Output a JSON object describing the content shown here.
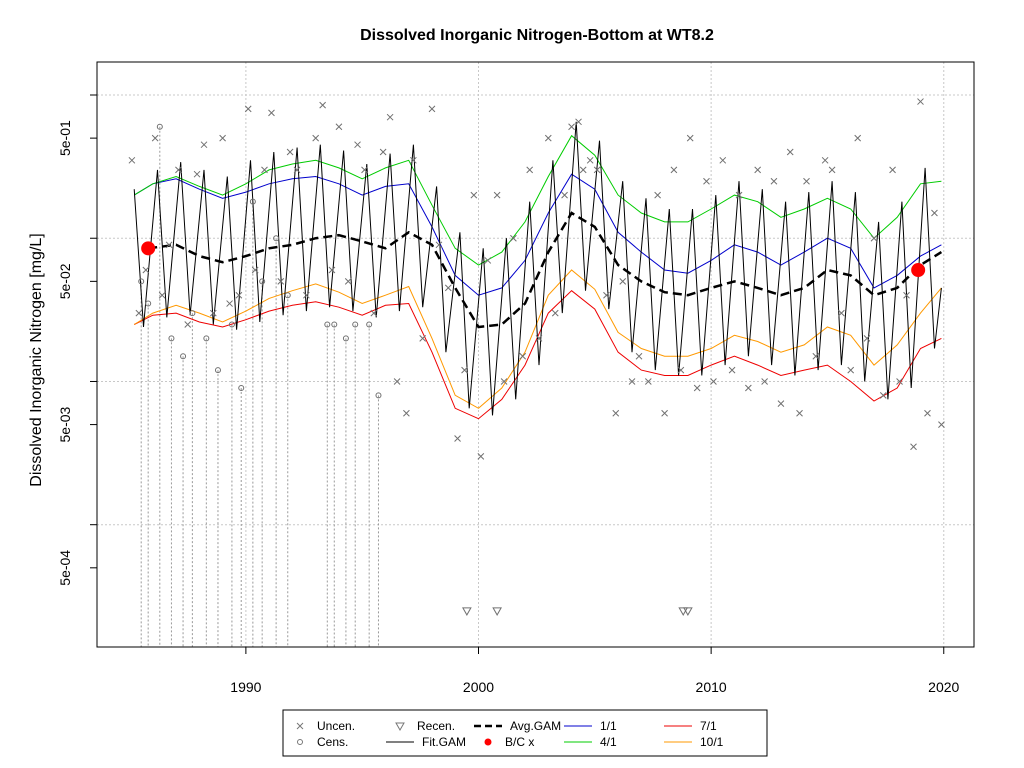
{
  "chart_data": {
    "type": "line",
    "title": "Dissolved Inorganic Nitrogen-Bottom at WT8.2",
    "xlabel": "",
    "ylabel": "Dissolved Inorganic Nitrogen [mg/L]",
    "y_scale": "log",
    "xlim": [
      1983.6,
      2021.3
    ],
    "ylim": [
      0.00014,
      1.7
    ],
    "x_ticks": [
      1990,
      2000,
      2010,
      2020
    ],
    "x_tick_labels": [
      "1990",
      "2000",
      "2010",
      "2020"
    ],
    "y_ticks": [
      0.0005,
      0.005,
      0.05,
      0.5
    ],
    "y_tick_labels": [
      "5e-04",
      "5e-03",
      "5e-02",
      "5e-01"
    ],
    "grid": true,
    "legend_position": "bottom",
    "legend": [
      {
        "label": "Uncen.",
        "kind": "cross",
        "color": "#777777"
      },
      {
        "label": "Cens.",
        "kind": "circle",
        "color": "#777777"
      },
      {
        "label": "Recen.",
        "kind": "triangle",
        "color": "#777777"
      },
      {
        "label": "Fit.GAM",
        "kind": "line",
        "color": "#000000"
      },
      {
        "label": "Avg.GAM",
        "kind": "dash",
        "color": "#000000"
      },
      {
        "label": "B/C x",
        "kind": "dot",
        "color": "#ff0000"
      },
      {
        "label": "1/1",
        "kind": "line",
        "color": "#0000cc"
      },
      {
        "label": "4/1",
        "kind": "line",
        "color": "#00cc00"
      },
      {
        "label": "7/1",
        "kind": "line",
        "color": "#ee0000"
      },
      {
        "label": "10/1",
        "kind": "line",
        "color": "#ff9900"
      }
    ],
    "series": [
      {
        "name": "Avg.GAM",
        "color": "#000000",
        "style": "dash",
        "x": [
          1985.8,
          1987,
          1988,
          1989,
          1990,
          1991,
          1992,
          1993,
          1994,
          1995,
          1996,
          1997,
          1998,
          1999,
          2000,
          2001,
          2002,
          2003,
          2004,
          2005,
          2006,
          2007,
          2008,
          2009,
          2010,
          2011,
          2012,
          2013,
          2014,
          2015,
          2016,
          2017,
          2018,
          2019,
          2019.9
        ],
        "y": [
          0.085,
          0.09,
          0.075,
          0.068,
          0.075,
          0.085,
          0.09,
          0.1,
          0.105,
          0.095,
          0.085,
          0.11,
          0.09,
          0.045,
          0.024,
          0.025,
          0.035,
          0.08,
          0.15,
          0.12,
          0.065,
          0.05,
          0.042,
          0.04,
          0.045,
          0.05,
          0.045,
          0.04,
          0.045,
          0.06,
          0.055,
          0.04,
          0.045,
          0.065,
          0.08
        ]
      },
      {
        "name": "1/1",
        "color": "#0000cc",
        "style": "solid",
        "x": [
          1985.2,
          1986,
          1987,
          1988,
          1989,
          1990,
          1991,
          1992,
          1993,
          1994,
          1995,
          1996,
          1997,
          1998,
          1999,
          2000,
          2001,
          2002,
          2003,
          2004,
          2005,
          2006,
          2007,
          2008,
          2009,
          2010,
          2011,
          2012,
          2013,
          2014,
          2015,
          2016,
          2017,
          2018,
          2019,
          2019.9
        ],
        "y": [
          0.2,
          0.24,
          0.26,
          0.22,
          0.19,
          0.21,
          0.24,
          0.26,
          0.27,
          0.24,
          0.2,
          0.23,
          0.24,
          0.12,
          0.055,
          0.04,
          0.045,
          0.07,
          0.15,
          0.28,
          0.22,
          0.11,
          0.08,
          0.06,
          0.057,
          0.07,
          0.09,
          0.08,
          0.065,
          0.08,
          0.1,
          0.085,
          0.045,
          0.055,
          0.075,
          0.09
        ]
      },
      {
        "name": "4/1",
        "color": "#00cc00",
        "style": "solid",
        "x": [
          1985.2,
          1986,
          1987,
          1988,
          1989,
          1990,
          1991,
          1992,
          1993,
          1994,
          1995,
          1996,
          1997,
          1998,
          1999,
          2000,
          2001,
          2002,
          2003,
          2004,
          2005,
          2006,
          2007,
          2008,
          2009,
          2010,
          2011,
          2012,
          2013,
          2014,
          2015,
          2016,
          2017,
          2018,
          2019,
          2019.9
        ],
        "y": [
          0.2,
          0.24,
          0.27,
          0.23,
          0.2,
          0.24,
          0.3,
          0.33,
          0.35,
          0.31,
          0.26,
          0.31,
          0.35,
          0.17,
          0.085,
          0.065,
          0.08,
          0.13,
          0.27,
          0.52,
          0.38,
          0.2,
          0.15,
          0.13,
          0.13,
          0.16,
          0.2,
          0.18,
          0.14,
          0.16,
          0.19,
          0.16,
          0.1,
          0.14,
          0.24,
          0.25
        ]
      },
      {
        "name": "7/1",
        "color": "#ee0000",
        "style": "solid",
        "x": [
          1985.2,
          1986,
          1987,
          1988,
          1989,
          1990,
          1991,
          1992,
          1993,
          1994,
          1995,
          1996,
          1997,
          1998,
          1999,
          2000,
          2001,
          2002,
          2003,
          2004,
          2005,
          2006,
          2007,
          2008,
          2009,
          2010,
          2011,
          2012,
          2013,
          2014,
          2015,
          2016,
          2017,
          2018,
          2019,
          2019.9
        ],
        "y": [
          0.025,
          0.029,
          0.03,
          0.026,
          0.024,
          0.027,
          0.031,
          0.034,
          0.036,
          0.033,
          0.029,
          0.034,
          0.035,
          0.016,
          0.0065,
          0.0055,
          0.0075,
          0.013,
          0.03,
          0.043,
          0.032,
          0.016,
          0.012,
          0.011,
          0.011,
          0.013,
          0.015,
          0.013,
          0.011,
          0.012,
          0.013,
          0.01,
          0.0073,
          0.009,
          0.017,
          0.02
        ]
      },
      {
        "name": "10/1",
        "color": "#ff9900",
        "style": "solid",
        "x": [
          1985.2,
          1986,
          1987,
          1988,
          1989,
          1990,
          1991,
          1992,
          1993,
          1994,
          1995,
          1996,
          1997,
          1998,
          1999,
          2000,
          2001,
          2002,
          2003,
          2004,
          2005,
          2006,
          2007,
          2008,
          2009,
          2010,
          2011,
          2012,
          2013,
          2014,
          2015,
          2016,
          2017,
          2018,
          2019,
          2019.9
        ],
        "y": [
          0.025,
          0.03,
          0.034,
          0.03,
          0.026,
          0.031,
          0.038,
          0.043,
          0.048,
          0.042,
          0.035,
          0.04,
          0.046,
          0.02,
          0.008,
          0.0065,
          0.009,
          0.016,
          0.04,
          0.06,
          0.044,
          0.022,
          0.017,
          0.015,
          0.015,
          0.017,
          0.021,
          0.019,
          0.016,
          0.018,
          0.024,
          0.021,
          0.013,
          0.018,
          0.03,
          0.045
        ]
      },
      {
        "name": "Fit.GAM",
        "color": "#000000",
        "style": "solid",
        "x": [
          1985.2,
          1985.6,
          1986.2,
          1986.6,
          1987.2,
          1987.6,
          1988.2,
          1988.6,
          1989.2,
          1989.6,
          1990.2,
          1990.6,
          1991.2,
          1991.6,
          1992.2,
          1992.6,
          1993.2,
          1993.6,
          1994.2,
          1994.6,
          1995.2,
          1995.6,
          1996.2,
          1996.6,
          1997.2,
          1997.6,
          1998.2,
          1998.6,
          1999.2,
          1999.6,
          2000.2,
          2000.6,
          2001.2,
          2001.6,
          2002.2,
          2002.6,
          2003.2,
          2003.6,
          2004.2,
          2004.6,
          2005.2,
          2005.6,
          2006.2,
          2006.6,
          2007.2,
          2007.6,
          2008.2,
          2008.6,
          2009.2,
          2009.6,
          2010.2,
          2010.6,
          2011.2,
          2011.6,
          2012.2,
          2012.6,
          2013.2,
          2013.6,
          2014.2,
          2014.6,
          2015.2,
          2015.6,
          2016.2,
          2016.6,
          2017.2,
          2017.6,
          2018.2,
          2018.6,
          2019.2,
          2019.6,
          2019.9
        ],
        "y": [
          0.22,
          0.024,
          0.3,
          0.028,
          0.34,
          0.029,
          0.3,
          0.025,
          0.27,
          0.023,
          0.35,
          0.026,
          0.4,
          0.029,
          0.43,
          0.031,
          0.45,
          0.033,
          0.41,
          0.031,
          0.33,
          0.028,
          0.39,
          0.031,
          0.45,
          0.033,
          0.23,
          0.016,
          0.11,
          0.0065,
          0.085,
          0.0058,
          0.1,
          0.0075,
          0.18,
          0.013,
          0.35,
          0.03,
          0.65,
          0.043,
          0.48,
          0.032,
          0.25,
          0.016,
          0.19,
          0.012,
          0.16,
          0.011,
          0.16,
          0.011,
          0.2,
          0.013,
          0.25,
          0.015,
          0.22,
          0.013,
          0.18,
          0.011,
          0.21,
          0.012,
          0.25,
          0.013,
          0.21,
          0.01,
          0.13,
          0.0075,
          0.18,
          0.009,
          0.31,
          0.017,
          0.045
        ]
      },
      {
        "name": "B/C x",
        "color": "#ff0000",
        "style": "points",
        "x": [
          1985.8,
          2018.9
        ],
        "y": [
          0.085,
          0.06
        ]
      }
    ],
    "points_uncensored": {
      "x": [
        1985.1,
        1985.4,
        1985.7,
        1986.1,
        1986.4,
        1986.7,
        1987.1,
        1987.5,
        1987.9,
        1988.2,
        1988.6,
        1989.0,
        1989.3,
        1989.7,
        1990.1,
        1990.4,
        1990.8,
        1991.1,
        1991.5,
        1991.9,
        1992.2,
        1992.6,
        1993.0,
        1993.3,
        1993.7,
        1994.0,
        1994.4,
        1994.8,
        1995.1,
        1995.5,
        1995.9,
        1996.2,
        1996.5,
        1996.9,
        1997.2,
        1997.6,
        1998.0,
        1998.3,
        1998.7,
        1999.1,
        1999.4,
        1999.8,
        2000.1,
        2000.4,
        2000.8,
        2001.1,
        2001.5,
        2001.9,
        2002.2,
        2002.6,
        2003.0,
        2003.3,
        2003.7,
        2004.0,
        2004.3,
        2004.5,
        2004.8,
        2005.1,
        2005.5,
        2005.9,
        2006.2,
        2006.6,
        2006.9,
        2007.3,
        2007.7,
        2008.0,
        2008.4,
        2008.7,
        2009.1,
        2009.4,
        2009.8,
        2010.1,
        2010.5,
        2010.9,
        2011.2,
        2011.6,
        2012.0,
        2012.3,
        2012.7,
        2013.0,
        2013.4,
        2013.8,
        2014.1,
        2014.5,
        2014.9,
        2015.2,
        2015.6,
        2016.0,
        2016.3,
        2016.7,
        2017.0,
        2017.4,
        2017.8,
        2018.1,
        2018.4,
        2018.7,
        2019.0,
        2019.3,
        2019.6,
        2019.9
      ],
      "y": [
        0.35,
        0.03,
        0.06,
        0.5,
        0.04,
        0.09,
        0.3,
        0.025,
        0.28,
        0.45,
        0.03,
        0.5,
        0.035,
        0.04,
        0.8,
        0.06,
        0.3,
        0.75,
        0.05,
        0.4,
        0.3,
        0.04,
        0.5,
        0.85,
        0.06,
        0.6,
        0.05,
        0.45,
        0.3,
        0.03,
        0.4,
        0.7,
        0.01,
        0.006,
        0.35,
        0.02,
        0.8,
        0.09,
        0.045,
        0.004,
        0.012,
        0.2,
        0.003,
        0.07,
        0.2,
        0.01,
        0.1,
        0.015,
        0.3,
        0.02,
        0.5,
        0.03,
        0.2,
        0.6,
        0.65,
        0.3,
        0.35,
        0.3,
        0.04,
        0.006,
        0.05,
        0.01,
        0.015,
        0.01,
        0.2,
        0.006,
        0.3,
        0.012,
        0.5,
        0.009,
        0.25,
        0.01,
        0.35,
        0.012,
        0.2,
        0.009,
        0.3,
        0.01,
        0.25,
        0.007,
        0.4,
        0.006,
        0.25,
        0.015,
        0.35,
        0.3,
        0.03,
        0.012,
        0.5,
        0.02,
        0.1,
        0.008,
        0.3,
        0.01,
        0.04,
        0.0035,
        0.9,
        0.006,
        0.15,
        0.005
      ]
    },
    "points_censored": {
      "x": [
        1985.5,
        1985.8,
        1986.3,
        1986.8,
        1987.3,
        1987.7,
        1988.3,
        1988.8,
        1989.4,
        1989.8,
        1990.3,
        1990.7,
        1991.3,
        1991.8,
        1993.5,
        1993.8,
        1994.3,
        1994.7,
        1995.3,
        1995.7
      ],
      "y": [
        0.05,
        0.035,
        0.6,
        0.02,
        0.015,
        0.03,
        0.02,
        0.012,
        0.025,
        0.009,
        0.18,
        0.05,
        0.1,
        0.04,
        0.025,
        0.025,
        0.02,
        0.025,
        0.025,
        0.008
      ]
    },
    "points_recensored": {
      "x": [
        1999.5,
        2000.8,
        2008.8,
        2009.0
      ],
      "y": [
        0.00025,
        0.00025,
        0.00025,
        0.00025
      ]
    }
  }
}
